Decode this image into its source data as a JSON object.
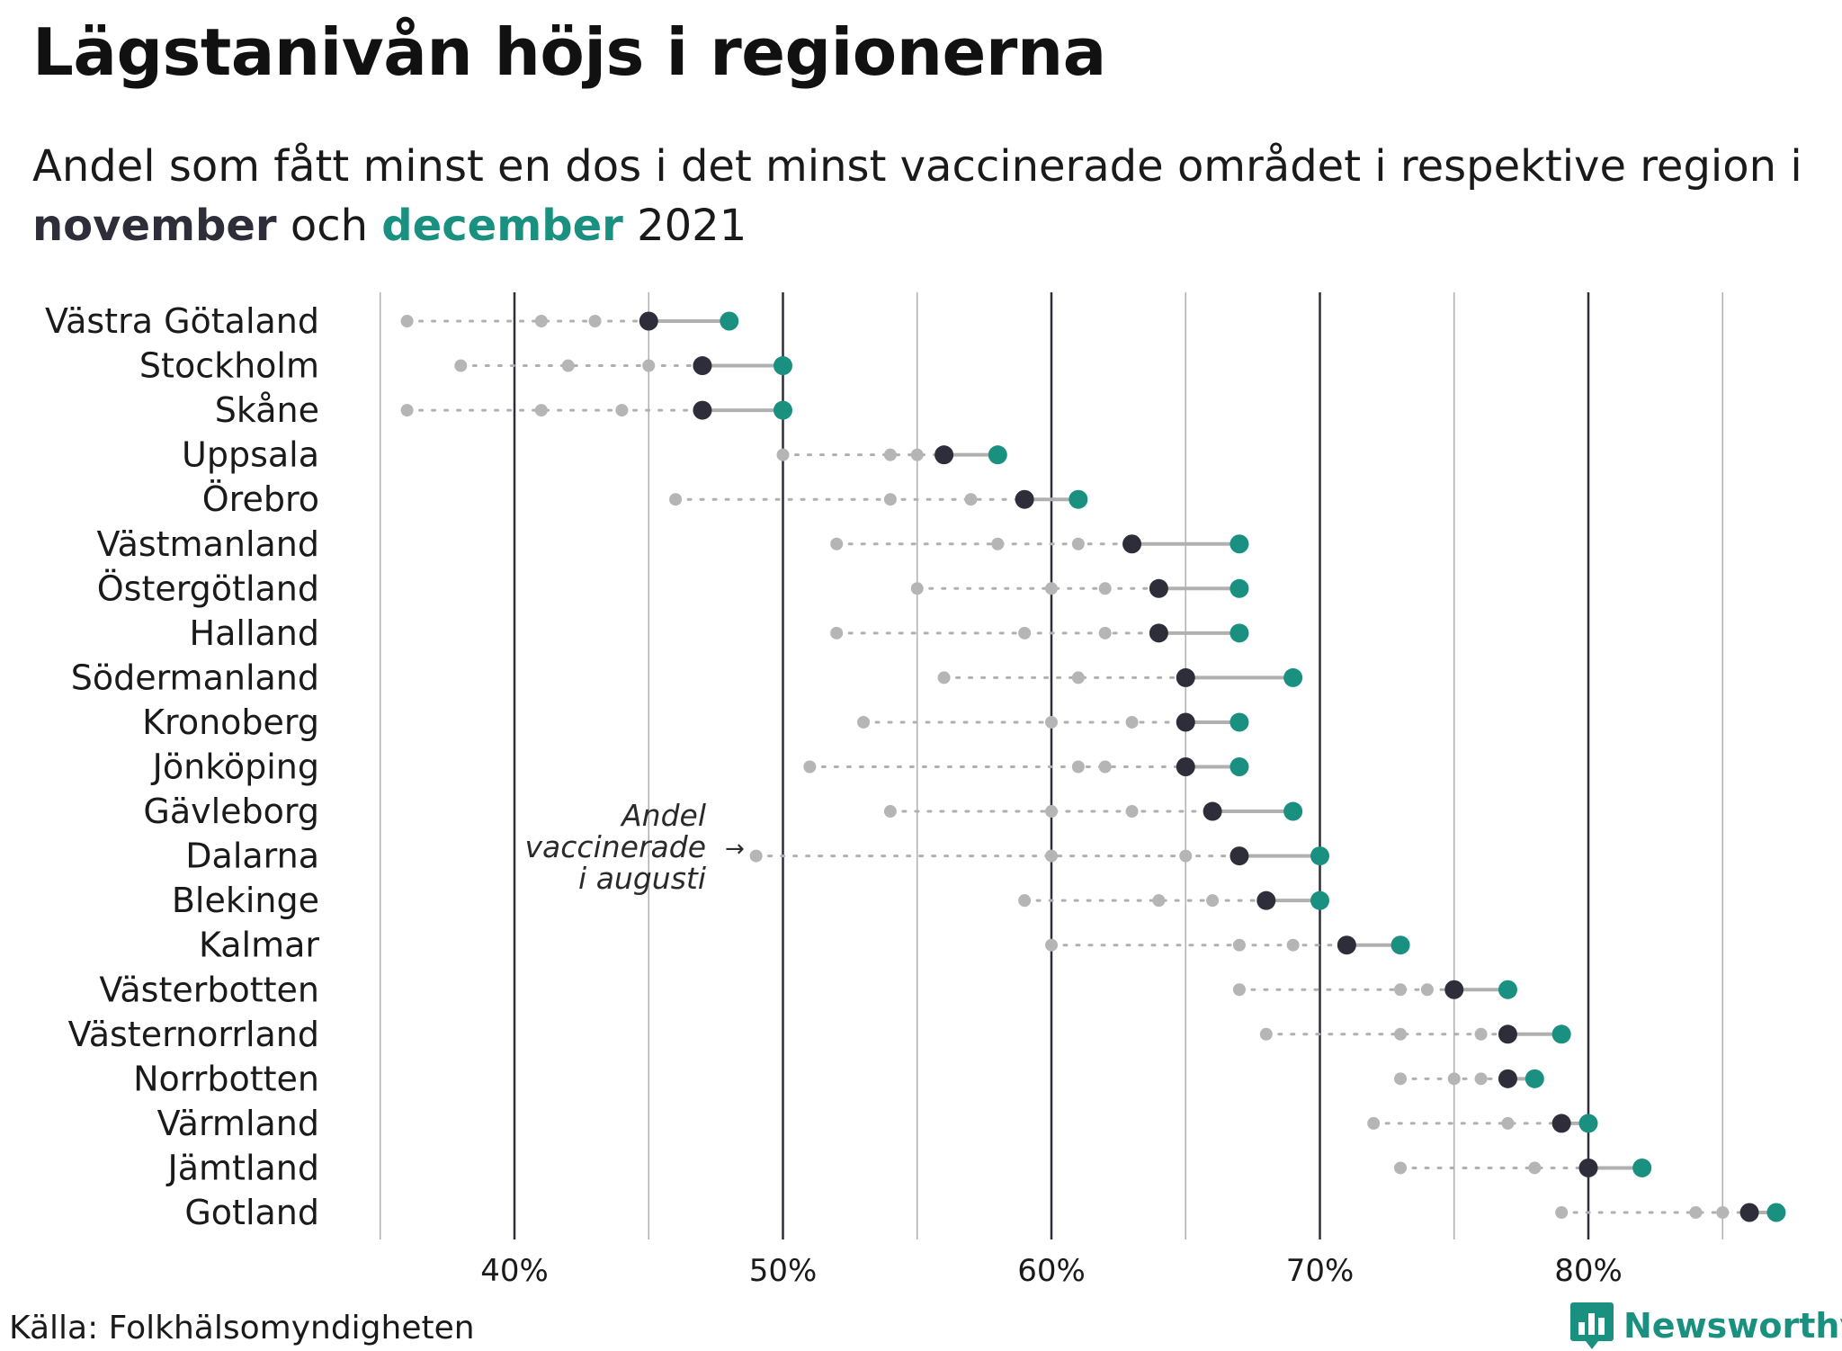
{
  "title": "Lägstanivån höjs i regionerna",
  "subtitle": {
    "part1": "Andel som fått minst en dos i det minst vaccinerade området i respektive region i ",
    "november": "november",
    "and": " och ",
    "december": "december",
    "year": " 2021"
  },
  "source": "Källa: Folkhälsomyndigheten",
  "logo": {
    "text": "Newsworthy",
    "icon": "bar-chart-speech-icon"
  },
  "annotation": {
    "lines": [
      "Andel",
      "vaccinerade",
      "i augusti"
    ],
    "arrow": "→"
  },
  "colors": {
    "november": "#2e2e3a",
    "december": "#1a9080",
    "history": "#b5b5b5",
    "connector": "#b0b0b0",
    "grid_major": "#2e2e3a",
    "grid_minor": "#b0b0b0"
  },
  "chart_data": {
    "type": "dot-range",
    "x_axis": {
      "min": 35,
      "max": 88,
      "ticks": [
        40,
        50,
        60,
        70,
        80
      ],
      "tick_labels": [
        "40%",
        "50%",
        "60%",
        "70%",
        "80%"
      ],
      "minor_ticks": [
        35,
        45,
        55,
        65,
        75,
        85
      ],
      "unit": "%"
    },
    "series": [
      {
        "name": "november",
        "role": "november"
      },
      {
        "name": "december",
        "role": "december"
      }
    ],
    "regions": [
      {
        "name": "Västra Götaland",
        "history": [
          36,
          41,
          43
        ],
        "november": 45,
        "december": 48
      },
      {
        "name": "Stockholm",
        "history": [
          38,
          42,
          45
        ],
        "november": 47,
        "december": 50
      },
      {
        "name": "Skåne",
        "history": [
          36,
          41,
          44
        ],
        "november": 47,
        "december": 50
      },
      {
        "name": "Uppsala",
        "history": [
          50,
          54,
          55
        ],
        "november": 56,
        "december": 58
      },
      {
        "name": "Örebro",
        "history": [
          46,
          54,
          57
        ],
        "november": 59,
        "december": 61
      },
      {
        "name": "Västmanland",
        "history": [
          52,
          58,
          61
        ],
        "november": 63,
        "december": 67
      },
      {
        "name": "Östergötland",
        "history": [
          55,
          60,
          62
        ],
        "november": 64,
        "december": 67
      },
      {
        "name": "Halland",
        "history": [
          52,
          59,
          62
        ],
        "november": 64,
        "december": 67
      },
      {
        "name": "Södermanland",
        "history": [
          56,
          61
        ],
        "november": 65,
        "december": 69
      },
      {
        "name": "Kronoberg",
        "history": [
          53,
          60,
          63
        ],
        "november": 65,
        "december": 67
      },
      {
        "name": "Jönköping",
        "history": [
          51,
          61,
          62
        ],
        "november": 65,
        "december": 67
      },
      {
        "name": "Gävleborg",
        "history": [
          54,
          60,
          63
        ],
        "november": 66,
        "december": 69
      },
      {
        "name": "Dalarna",
        "history": [
          49,
          60,
          65
        ],
        "november": 67,
        "december": 70
      },
      {
        "name": "Blekinge",
        "history": [
          59,
          64,
          66
        ],
        "november": 68,
        "december": 70
      },
      {
        "name": "Kalmar",
        "history": [
          60,
          67,
          69
        ],
        "november": 71,
        "december": 73
      },
      {
        "name": "Västerbotten",
        "history": [
          67,
          73,
          74
        ],
        "november": 75,
        "december": 77
      },
      {
        "name": "Västernorrland",
        "history": [
          68,
          73,
          76
        ],
        "november": 77,
        "december": 79
      },
      {
        "name": "Norrbotten",
        "history": [
          73,
          75,
          76
        ],
        "november": 77,
        "december": 78
      },
      {
        "name": "Värmland",
        "history": [
          72,
          77
        ],
        "november": 79,
        "december": 80
      },
      {
        "name": "Jämtland",
        "history": [
          73,
          78
        ],
        "november": 80,
        "december": 82
      },
      {
        "name": "Gotland",
        "history": [
          79,
          84,
          85
        ],
        "november": 86,
        "december": 87
      }
    ]
  }
}
